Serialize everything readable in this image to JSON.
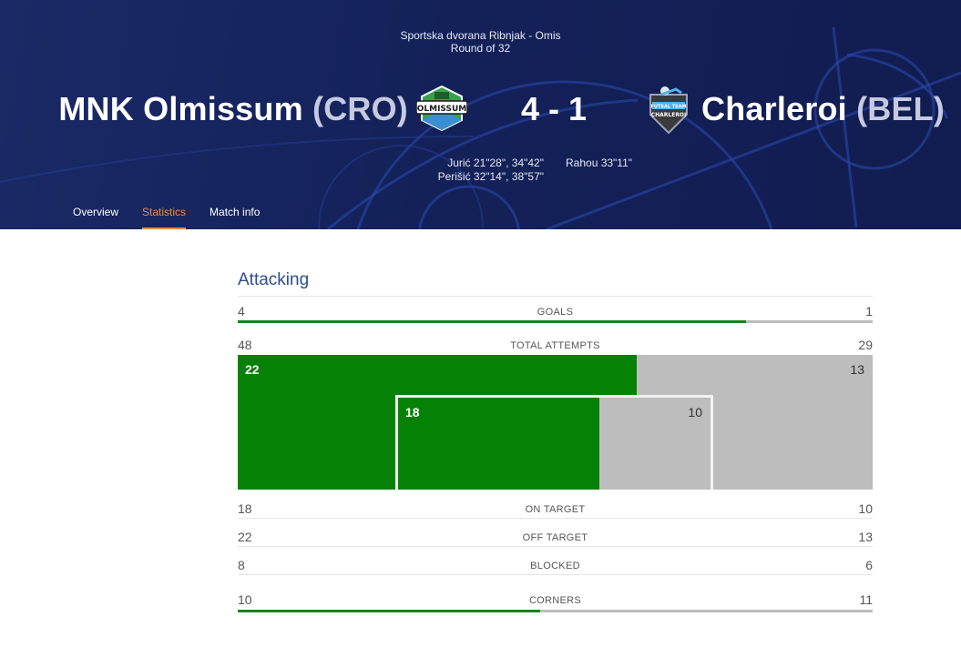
{
  "match": {
    "venue": "Sportska dvorana Ribnjak - Omis",
    "round": "Round of 32",
    "home": {
      "name": "MNK Olmissum",
      "country": "(CRO)",
      "logo_text": "OLMISSUM",
      "logo_color": "#3aa14a"
    },
    "away": {
      "name": "Charleroi",
      "country": "(BEL)",
      "logo_text_top": "FUTSAL TEAM",
      "logo_text_bottom": "CHARLEROI"
    },
    "score": "4 - 1",
    "home_scorers": [
      "Jurić 21\"28\", 34\"42\"",
      "Perišić 32\"14\", 38\"57\""
    ],
    "away_scorers": [
      "Rahou 33\"11\""
    ]
  },
  "tabs": [
    {
      "label": "Overview",
      "active": false
    },
    {
      "label": "Statistics",
      "active": true
    },
    {
      "label": "Match info",
      "active": false
    }
  ],
  "stats": {
    "section_title": "Attacking",
    "goals": {
      "label": "GOALS",
      "home": 4,
      "away": 1
    },
    "total_attempts": {
      "label": "TOTAL ATTEMPTS",
      "home": 48,
      "away": 29
    },
    "attempts_breakdown": {
      "off_target_home": 22,
      "off_target_away": 13,
      "on_target_home": 18,
      "on_target_away": 10
    },
    "on_target": {
      "label": "ON TARGET",
      "home": 18,
      "away": 10
    },
    "off_target": {
      "label": "OFF TARGET",
      "home": 22,
      "away": 13
    },
    "blocked": {
      "label": "BLOCKED",
      "home": 8,
      "away": 6
    },
    "corners": {
      "label": "CORNERS",
      "home": 10,
      "away": 11
    }
  },
  "colors": {
    "header_bg": "#142159",
    "home_green": "#058205",
    "away_grey": "#bdbdbd",
    "accent_orange": "#f08a4b",
    "title_blue": "#2d4e8e"
  }
}
